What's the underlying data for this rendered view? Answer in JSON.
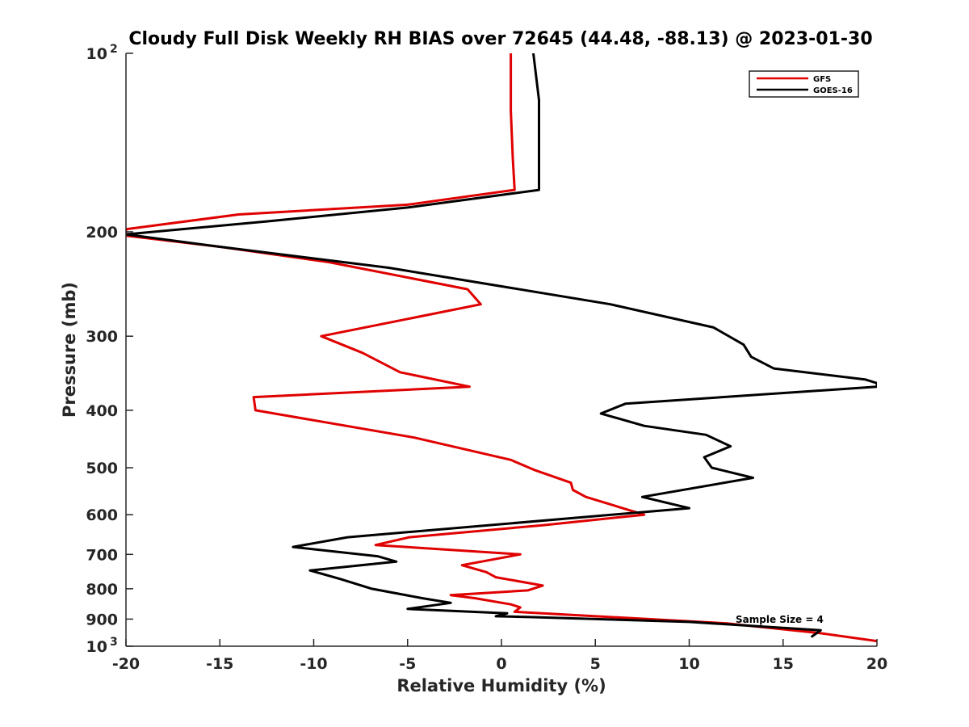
{
  "chart_data": {
    "type": "line",
    "title": "Cloudy Full Disk Weekly RH BIAS over 72645 (44.48, -88.13) @ 2023-01-30",
    "xlabel": "Relative Humidity (%)",
    "ylabel": "Pressure (mb)",
    "xlim": [
      -20,
      20
    ],
    "ylim": [
      100,
      1000
    ],
    "y_scale": "log",
    "y_reversed": true,
    "x_ticks": [
      "-20",
      "-15",
      "-10",
      "-5",
      "0",
      "5",
      "10",
      "15",
      "20"
    ],
    "y_ticks": [
      {
        "base": "10",
        "exp": "2"
      },
      {
        "base": "200",
        "exp": ""
      },
      {
        "base": "300",
        "exp": ""
      },
      {
        "base": "400",
        "exp": ""
      },
      {
        "base": "500",
        "exp": ""
      },
      {
        "base": "600",
        "exp": ""
      },
      {
        "base": "700",
        "exp": ""
      },
      {
        "base": "800",
        "exp": ""
      },
      {
        "base": "900",
        "exp": ""
      },
      {
        "base": "10",
        "exp": "3"
      }
    ],
    "grid": false,
    "legend_position": "top-right",
    "annotation": "Sample Size = 4",
    "series": [
      {
        "name": "GFS",
        "color": "#e00000",
        "points": [
          [
            0.5,
            100
          ],
          [
            0.5,
            125
          ],
          [
            0.6,
            150
          ],
          [
            0.7,
            170
          ],
          [
            -5,
            180
          ],
          [
            -14,
            187
          ],
          [
            -20,
            198
          ],
          [
            -20,
            203
          ],
          [
            -15,
            212
          ],
          [
            -9.2,
            225
          ],
          [
            -1.8,
            250
          ],
          [
            -1.1,
            265
          ],
          [
            -9.6,
            300
          ],
          [
            -7.4,
            320
          ],
          [
            -5.4,
            345
          ],
          [
            -1.7,
            365
          ],
          [
            -13.2,
            380
          ],
          [
            -13.1,
            400
          ],
          [
            -4.6,
            445
          ],
          [
            0.5,
            485
          ],
          [
            1.8,
            505
          ],
          [
            3.7,
            530
          ],
          [
            3.8,
            545
          ],
          [
            4.5,
            560
          ],
          [
            7.6,
            600
          ],
          [
            2.2,
            625
          ],
          [
            -4.9,
            655
          ],
          [
            -6.7,
            675
          ],
          [
            1,
            700
          ],
          [
            -2.1,
            730
          ],
          [
            -0.8,
            750
          ],
          [
            -0.3,
            765
          ],
          [
            2.2,
            790
          ],
          [
            1.4,
            805
          ],
          [
            -2.7,
            820
          ],
          [
            -1.4,
            830
          ],
          [
            0.5,
            850
          ],
          [
            1,
            860
          ],
          [
            0.7,
            875
          ],
          [
            12,
            915
          ],
          [
            16.9,
            950
          ],
          [
            20,
            980
          ]
        ]
      },
      {
        "name": "GOES-16",
        "color": "#000000",
        "points": [
          [
            1.7,
            100
          ],
          [
            2,
            120
          ],
          [
            2,
            140
          ],
          [
            2,
            170
          ],
          [
            -5,
            182
          ],
          [
            -12.4,
            192
          ],
          [
            -20,
            202
          ],
          [
            -15,
            212
          ],
          [
            -6,
            230
          ],
          [
            5.8,
            265
          ],
          [
            11.3,
            290
          ],
          [
            12.9,
            310
          ],
          [
            13.3,
            325
          ],
          [
            14.5,
            340
          ],
          [
            19.4,
            355
          ],
          [
            20,
            360
          ],
          [
            20,
            365
          ],
          [
            6.6,
            390
          ],
          [
            5.3,
            405
          ],
          [
            7.6,
            425
          ],
          [
            10.9,
            440
          ],
          [
            12.2,
            460
          ],
          [
            10.8,
            480
          ],
          [
            11.2,
            500
          ],
          [
            13.4,
            520
          ],
          [
            7.5,
            560
          ],
          [
            10,
            585
          ],
          [
            -8.2,
            655
          ],
          [
            -11.1,
            680
          ],
          [
            -6.6,
            705
          ],
          [
            -5.6,
            720
          ],
          [
            -10.2,
            745
          ],
          [
            -8.6,
            770
          ],
          [
            -6.9,
            800
          ],
          [
            -4.2,
            830
          ],
          [
            -2.7,
            845
          ],
          [
            -5,
            865
          ],
          [
            0.3,
            880
          ],
          [
            -0.3,
            890
          ],
          [
            1.5,
            893
          ],
          [
            10,
            910
          ],
          [
            17,
            940
          ],
          [
            16.5,
            965
          ]
        ]
      }
    ]
  }
}
